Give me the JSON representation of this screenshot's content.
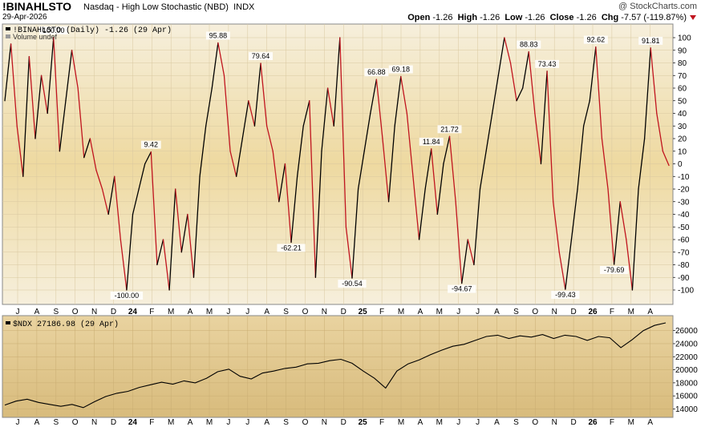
{
  "header": {
    "symbol": "!BINAHLSTO",
    "description": "Nasdaq - High Low Stochastic (NBD)",
    "exchange": "INDX",
    "date": "29-Apr-2026",
    "brand": "@ StockCharts.com",
    "open_label": "Open",
    "open": "-1.26",
    "high_label": "High",
    "high": "-1.26",
    "low_label": "Low",
    "low": "-1.26",
    "close_label": "Close",
    "close": "-1.26",
    "chg_label": "Chg",
    "chg": "-7.57 (-119.87%)"
  },
  "colors": {
    "up_line": "#000000",
    "down_line": "#c0141e",
    "panel_top": "#f5eed8",
    "panel_mid": "#e8cf8e",
    "ndx_bg": "#ddc185",
    "arrow": "#c0141e"
  },
  "chart_data": [
    {
      "type": "line",
      "legend": "!BINAHLSTO (Daily) -1.26 (29 Apr)",
      "legend2": "Volume undef",
      "ylim": [
        -100,
        100
      ],
      "yticks": [
        100,
        90,
        80,
        70,
        60,
        50,
        40,
        30,
        20,
        10,
        0,
        -10,
        -20,
        -30,
        -40,
        -50,
        -60,
        -70,
        -80,
        -90,
        -100
      ],
      "xticks": [
        "J",
        "A",
        "S",
        "O",
        "N",
        "D",
        "24",
        "F",
        "M",
        "A",
        "M",
        "J",
        "J",
        "A",
        "S",
        "O",
        "N",
        "D",
        "25",
        "F",
        "M",
        "A",
        "M",
        "J",
        "J",
        "A",
        "S",
        "O",
        "N",
        "D",
        "26",
        "F",
        "M",
        "A"
      ],
      "annotations": [
        "9.42",
        "95.88",
        "79.64",
        "-62.21",
        "-90.54",
        "66.88",
        "69.18",
        "11.84",
        "21.72",
        "-94.67",
        "100.00",
        "88.83",
        "73.43",
        "-99.43",
        "92.62",
        "-79.69",
        "91.81",
        "-100.00"
      ],
      "series": [
        {
          "values": [
            50,
            95,
            30,
            -10,
            85,
            20,
            70,
            40,
            100,
            10,
            50,
            90,
            60,
            5,
            20,
            -5,
            -20,
            -40,
            -10,
            -60,
            -100,
            -40,
            -20,
            0,
            9.42,
            -80,
            -60,
            -100,
            -20,
            -70,
            -40,
            -90,
            -10,
            30,
            60,
            95.88,
            70,
            10,
            -10,
            20,
            50,
            30,
            79.64,
            30,
            10,
            -30,
            0,
            -62.21,
            -10,
            30,
            50,
            -90,
            10,
            60,
            30,
            100,
            -50,
            -90.54,
            -20,
            10,
            40,
            66.88,
            20,
            -30,
            30,
            69.18,
            40,
            -10,
            -60,
            -20,
            11.84,
            -40,
            0,
            21.72,
            -30,
            -94.67,
            -60,
            -80,
            -20,
            10,
            40,
            70,
            100.0,
            80,
            50,
            60,
            88.83,
            40,
            0,
            73.43,
            -30,
            -70,
            -99.43,
            -60,
            -20,
            30,
            50,
            92.62,
            20,
            -20,
            -79.69,
            -30,
            -60,
            -100.0,
            -20,
            20,
            91.81,
            40,
            10,
            -1.26
          ]
        }
      ]
    },
    {
      "type": "line",
      "legend": "$NDX 27186.98 (29 Apr)",
      "ylim": [
        13200,
        27800
      ],
      "yticks": [
        26000,
        24000,
        22000,
        20000,
        18000,
        16000,
        14000
      ],
      "xticks": [
        "J",
        "A",
        "S",
        "O",
        "N",
        "D",
        "24",
        "F",
        "M",
        "A",
        "M",
        "J",
        "J",
        "A",
        "S",
        "O",
        "N",
        "D",
        "25",
        "F",
        "M",
        "A",
        "M",
        "J",
        "J",
        "A",
        "S",
        "O",
        "N",
        "D",
        "26",
        "F",
        "M",
        "A"
      ],
      "series": [
        {
          "values": [
            14600,
            15200,
            15500,
            15000,
            14700,
            14400,
            14700,
            14200,
            15100,
            15900,
            16400,
            16700,
            17300,
            17700,
            18100,
            17800,
            18300,
            18000,
            18700,
            19700,
            20100,
            19000,
            18600,
            19500,
            19800,
            20200,
            20400,
            20900,
            21000,
            21400,
            21600,
            21000,
            19800,
            18700,
            17200,
            19800,
            20900,
            21500,
            22300,
            23000,
            23600,
            23900,
            24500,
            25100,
            25300,
            24800,
            25200,
            25000,
            25400,
            24800,
            25300,
            25100,
            24500,
            25100,
            24900,
            23400,
            24600,
            26000,
            26800,
            27186.98
          ]
        }
      ]
    }
  ]
}
